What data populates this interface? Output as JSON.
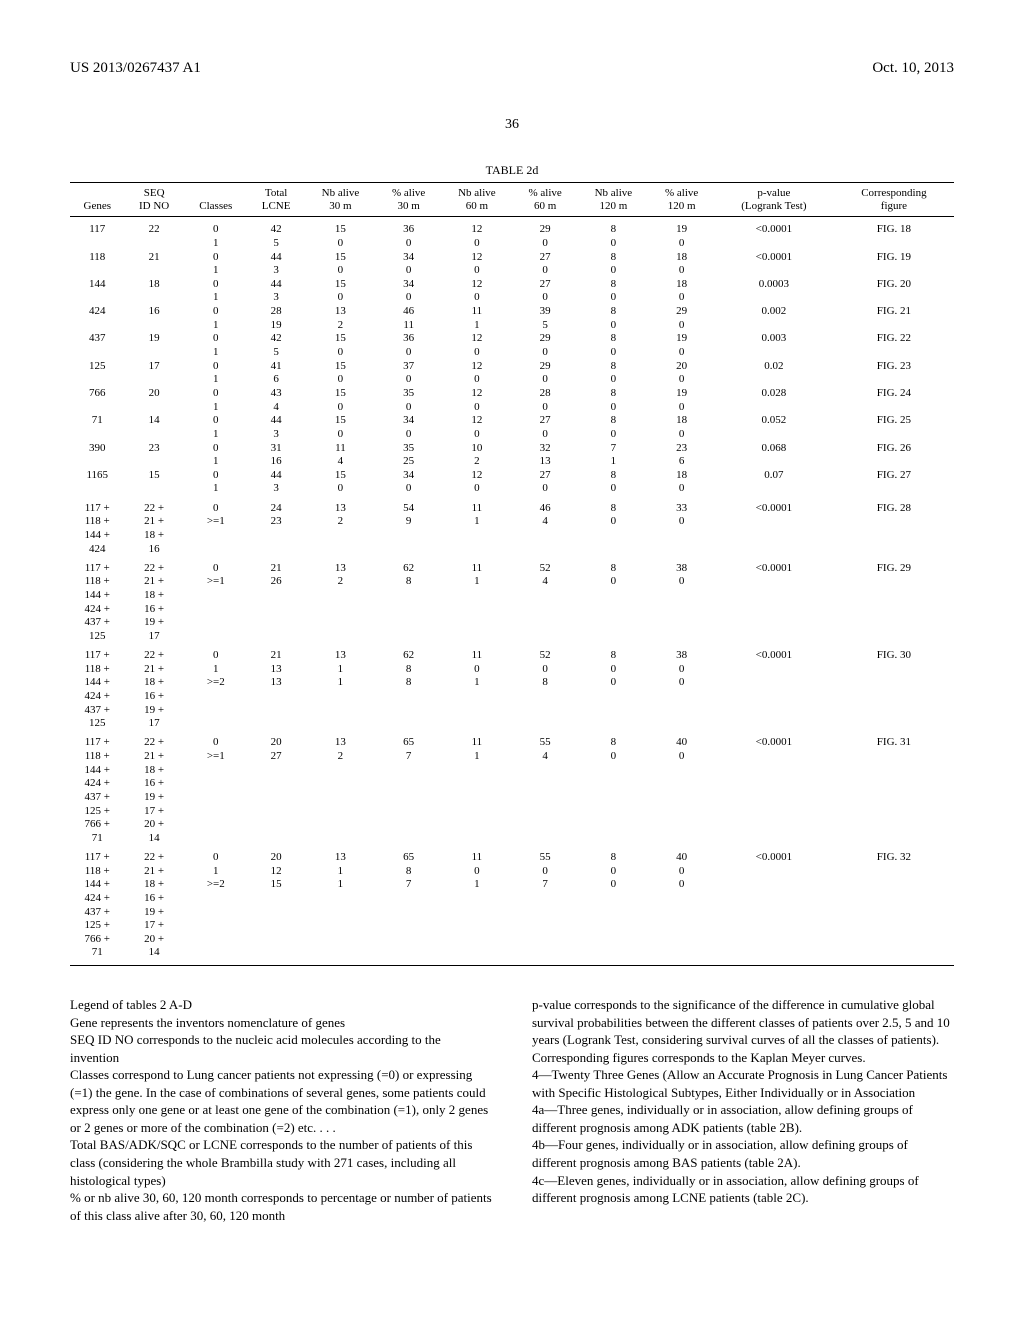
{
  "header": {
    "left": "US 2013/0267437 A1",
    "right": "Oct. 10, 2013",
    "page_number": "36"
  },
  "table": {
    "title": "TABLE 2d",
    "columns": [
      "Genes",
      "SEQ\nID NO",
      "Classes",
      "Total\nLCNE",
      "Nb alive\n30 m",
      "% alive\n30 m",
      "Nb alive\n60 m",
      "% alive\n60 m",
      "Nb alive\n120 m",
      "% alive\n120 m",
      "p-value\n(Logrank Test)",
      "Corresponding\nfigure"
    ],
    "rows": [
      {
        "g": [
          "117"
        ],
        "s": [
          "22"
        ],
        "cl": "0",
        "t": "42",
        "n30": "15",
        "p30": "36",
        "n60": "12",
        "p60": "29",
        "n120": "8",
        "p120": "19",
        "pv": "<0.0001",
        "fig": "FIG. 18",
        "gs": true
      },
      {
        "g": [],
        "s": [],
        "cl": "1",
        "t": "5",
        "n30": "0",
        "p30": "0",
        "n60": "0",
        "p60": "0",
        "n120": "0",
        "p120": "0",
        "pv": "",
        "fig": ""
      },
      {
        "g": [
          "118"
        ],
        "s": [
          "21"
        ],
        "cl": "0",
        "t": "44",
        "n30": "15",
        "p30": "34",
        "n60": "12",
        "p60": "27",
        "n120": "8",
        "p120": "18",
        "pv": "<0.0001",
        "fig": "FIG. 19"
      },
      {
        "g": [],
        "s": [],
        "cl": "1",
        "t": "3",
        "n30": "0",
        "p30": "0",
        "n60": "0",
        "p60": "0",
        "n120": "0",
        "p120": "0",
        "pv": "",
        "fig": ""
      },
      {
        "g": [
          "144"
        ],
        "s": [
          "18"
        ],
        "cl": "0",
        "t": "44",
        "n30": "15",
        "p30": "34",
        "n60": "12",
        "p60": "27",
        "n120": "8",
        "p120": "18",
        "pv": "0.0003",
        "fig": "FIG. 20"
      },
      {
        "g": [],
        "s": [],
        "cl": "1",
        "t": "3",
        "n30": "0",
        "p30": "0",
        "n60": "0",
        "p60": "0",
        "n120": "0",
        "p120": "0",
        "pv": "",
        "fig": ""
      },
      {
        "g": [
          "424"
        ],
        "s": [
          "16"
        ],
        "cl": "0",
        "t": "28",
        "n30": "13",
        "p30": "46",
        "n60": "11",
        "p60": "39",
        "n120": "8",
        "p120": "29",
        "pv": "0.002",
        "fig": "FIG. 21"
      },
      {
        "g": [],
        "s": [],
        "cl": "1",
        "t": "19",
        "n30": "2",
        "p30": "11",
        "n60": "1",
        "p60": "5",
        "n120": "0",
        "p120": "0",
        "pv": "",
        "fig": ""
      },
      {
        "g": [
          "437"
        ],
        "s": [
          "19"
        ],
        "cl": "0",
        "t": "42",
        "n30": "15",
        "p30": "36",
        "n60": "12",
        "p60": "29",
        "n120": "8",
        "p120": "19",
        "pv": "0.003",
        "fig": "FIG. 22"
      },
      {
        "g": [],
        "s": [],
        "cl": "1",
        "t": "5",
        "n30": "0",
        "p30": "0",
        "n60": "0",
        "p60": "0",
        "n120": "0",
        "p120": "0",
        "pv": "",
        "fig": ""
      },
      {
        "g": [
          "125"
        ],
        "s": [
          "17"
        ],
        "cl": "0",
        "t": "41",
        "n30": "15",
        "p30": "37",
        "n60": "12",
        "p60": "29",
        "n120": "8",
        "p120": "20",
        "pv": "0.02",
        "fig": "FIG. 23"
      },
      {
        "g": [],
        "s": [],
        "cl": "1",
        "t": "6",
        "n30": "0",
        "p30": "0",
        "n60": "0",
        "p60": "0",
        "n120": "0",
        "p120": "0",
        "pv": "",
        "fig": ""
      },
      {
        "g": [
          "766"
        ],
        "s": [
          "20"
        ],
        "cl": "0",
        "t": "43",
        "n30": "15",
        "p30": "35",
        "n60": "12",
        "p60": "28",
        "n120": "8",
        "p120": "19",
        "pv": "0.028",
        "fig": "FIG. 24"
      },
      {
        "g": [],
        "s": [],
        "cl": "1",
        "t": "4",
        "n30": "0",
        "p30": "0",
        "n60": "0",
        "p60": "0",
        "n120": "0",
        "p120": "0",
        "pv": "",
        "fig": ""
      },
      {
        "g": [
          "71"
        ],
        "s": [
          "14"
        ],
        "cl": "0",
        "t": "44",
        "n30": "15",
        "p30": "34",
        "n60": "12",
        "p60": "27",
        "n120": "8",
        "p120": "18",
        "pv": "0.052",
        "fig": "FIG. 25"
      },
      {
        "g": [],
        "s": [],
        "cl": "1",
        "t": "3",
        "n30": "0",
        "p30": "0",
        "n60": "0",
        "p60": "0",
        "n120": "0",
        "p120": "0",
        "pv": "",
        "fig": ""
      },
      {
        "g": [
          "390"
        ],
        "s": [
          "23"
        ],
        "cl": "0",
        "t": "31",
        "n30": "11",
        "p30": "35",
        "n60": "10",
        "p60": "32",
        "n120": "7",
        "p120": "23",
        "pv": "0.068",
        "fig": "FIG. 26"
      },
      {
        "g": [],
        "s": [],
        "cl": "1",
        "t": "16",
        "n30": "4",
        "p30": "25",
        "n60": "2",
        "p60": "13",
        "n120": "1",
        "p120": "6",
        "pv": "",
        "fig": ""
      },
      {
        "g": [
          "1165"
        ],
        "s": [
          "15"
        ],
        "cl": "0",
        "t": "44",
        "n30": "15",
        "p30": "34",
        "n60": "12",
        "p60": "27",
        "n120": "8",
        "p120": "18",
        "pv": "0.07",
        "fig": "FIG. 27"
      },
      {
        "g": [],
        "s": [],
        "cl": "1",
        "t": "3",
        "n30": "0",
        "p30": "0",
        "n60": "0",
        "p60": "0",
        "n120": "0",
        "p120": "0",
        "pv": "",
        "fig": ""
      },
      {
        "g": [
          "117 +",
          "118 +",
          "144 +",
          "424"
        ],
        "s": [
          "22 +",
          "21 +",
          "18 +",
          "16"
        ],
        "cl": [
          "0",
          ">=1"
        ],
        "t": [
          "24",
          "23"
        ],
        "n30": [
          "13",
          "2"
        ],
        "p30": [
          "54",
          "9"
        ],
        "n60": [
          "11",
          "1"
        ],
        "p60": [
          "46",
          "4"
        ],
        "n120": [
          "8",
          "0"
        ],
        "p120": [
          "33",
          "0"
        ],
        "pv": "<0.0001",
        "fig": "FIG. 28",
        "multiline": true
      },
      {
        "g": [
          "117 +",
          "118 +",
          "144 +",
          "424 +",
          "437 +",
          "125"
        ],
        "s": [
          "22 +",
          "21 +",
          "18 +",
          "16 +",
          "19 +",
          "17"
        ],
        "cl": [
          "0",
          ">=1"
        ],
        "t": [
          "21",
          "26"
        ],
        "n30": [
          "13",
          "2"
        ],
        "p30": [
          "62",
          "8"
        ],
        "n60": [
          "11",
          "1"
        ],
        "p60": [
          "52",
          "4"
        ],
        "n120": [
          "8",
          "0"
        ],
        "p120": [
          "38",
          "0"
        ],
        "pv": "<0.0001",
        "fig": "FIG. 29",
        "multiline": true
      },
      {
        "g": [
          "117 +",
          "118 +",
          "144 +",
          "424 +",
          "437 +",
          "125"
        ],
        "s": [
          "22 +",
          "21 +",
          "18 +",
          "16 +",
          "19 +",
          "17"
        ],
        "cl": [
          "0",
          "1",
          ">=2"
        ],
        "t": [
          "21",
          "13",
          "13"
        ],
        "n30": [
          "13",
          "1",
          "1"
        ],
        "p30": [
          "62",
          "8",
          "8"
        ],
        "n60": [
          "11",
          "0",
          "1"
        ],
        "p60": [
          "52",
          "0",
          "8"
        ],
        "n120": [
          "8",
          "0",
          "0"
        ],
        "p120": [
          "38",
          "0",
          "0"
        ],
        "pv": "<0.0001",
        "fig": "FIG. 30",
        "multiline": true
      },
      {
        "g": [
          "117 +",
          "118 +",
          "144 +",
          "424 +",
          "437 +",
          "125 +",
          "766 +",
          "71"
        ],
        "s": [
          "22 +",
          "21 +",
          "18 +",
          "16 +",
          "19 +",
          "17 +",
          "20 +",
          "14"
        ],
        "cl": [
          "0",
          ">=1"
        ],
        "t": [
          "20",
          "27"
        ],
        "n30": [
          "13",
          "2"
        ],
        "p30": [
          "65",
          "7"
        ],
        "n60": [
          "11",
          "1"
        ],
        "p60": [
          "55",
          "4"
        ],
        "n120": [
          "8",
          "0"
        ],
        "p120": [
          "40",
          "0"
        ],
        "pv": "<0.0001",
        "fig": "FIG. 31",
        "multiline": true
      },
      {
        "g": [
          "117 +",
          "118 +",
          "144 +",
          "424 +",
          "437 +",
          "125 +",
          "766 +",
          "71"
        ],
        "s": [
          "22 +",
          "21 +",
          "18 +",
          "16 +",
          "19 +",
          "17 +",
          "20 +",
          "14"
        ],
        "cl": [
          "0",
          "1",
          ">=2"
        ],
        "t": [
          "20",
          "12",
          "15"
        ],
        "n30": [
          "13",
          "1",
          "1"
        ],
        "p30": [
          "65",
          "8",
          "7"
        ],
        "n60": [
          "11",
          "0",
          "1"
        ],
        "p60": [
          "55",
          "0",
          "7"
        ],
        "n120": [
          "8",
          "0",
          "0"
        ],
        "p120": [
          "40",
          "0",
          "0"
        ],
        "pv": "<0.0001",
        "fig": "FIG. 32",
        "multiline": true,
        "last": true
      }
    ]
  },
  "legend": {
    "title": "Legend of tables 2 A-D",
    "p1": "Gene represents the inventors nomenclature of genes",
    "p2": "SEQ ID NO corresponds to the nucleic acid molecules according to the invention",
    "p3": "Classes correspond to Lung cancer patients not expressing (=0) or expressing (=1) the gene. In the case of combinations of several genes, some patients could express only one gene or at least one gene of the combination (=1), only 2 genes or 2 genes or more of the combination (=2) etc. . . .",
    "p4": "Total BAS/ADK/SQC or LCNE corresponds to the number of patients of this class (considering the whole Brambilla study with 271 cases, including all histological types)",
    "p5": "% or nb alive 30, 60, 120 month corresponds to percentage or number of patients of this class alive after 30, 60, 120 month",
    "p6": "p-value corresponds to the significance of the difference in cumulative global survival probabilities between the different classes of patients over 2.5, 5 and 10 years (Logrank Test, considering survival curves of all the classes of patients).",
    "p7": "Corresponding figures corresponds to the Kaplan Meyer curves.",
    "s4": "4—Twenty Three Genes (Allow an Accurate Prognosis in Lung Cancer Patients with Specific Histological Subtypes, Either Individually or in Association",
    "s4a": "4a—Three genes, individually or in association, allow defining groups of different prognosis among ADK patients (table 2B).",
    "s4b": "4b—Four genes, individually or in association, allow defining groups of different prognosis among BAS patients (table 2A).",
    "s4c": "4c—Eleven genes, individually or in association, allow defining groups of different prognosis among LCNE patients (table 2C)."
  }
}
